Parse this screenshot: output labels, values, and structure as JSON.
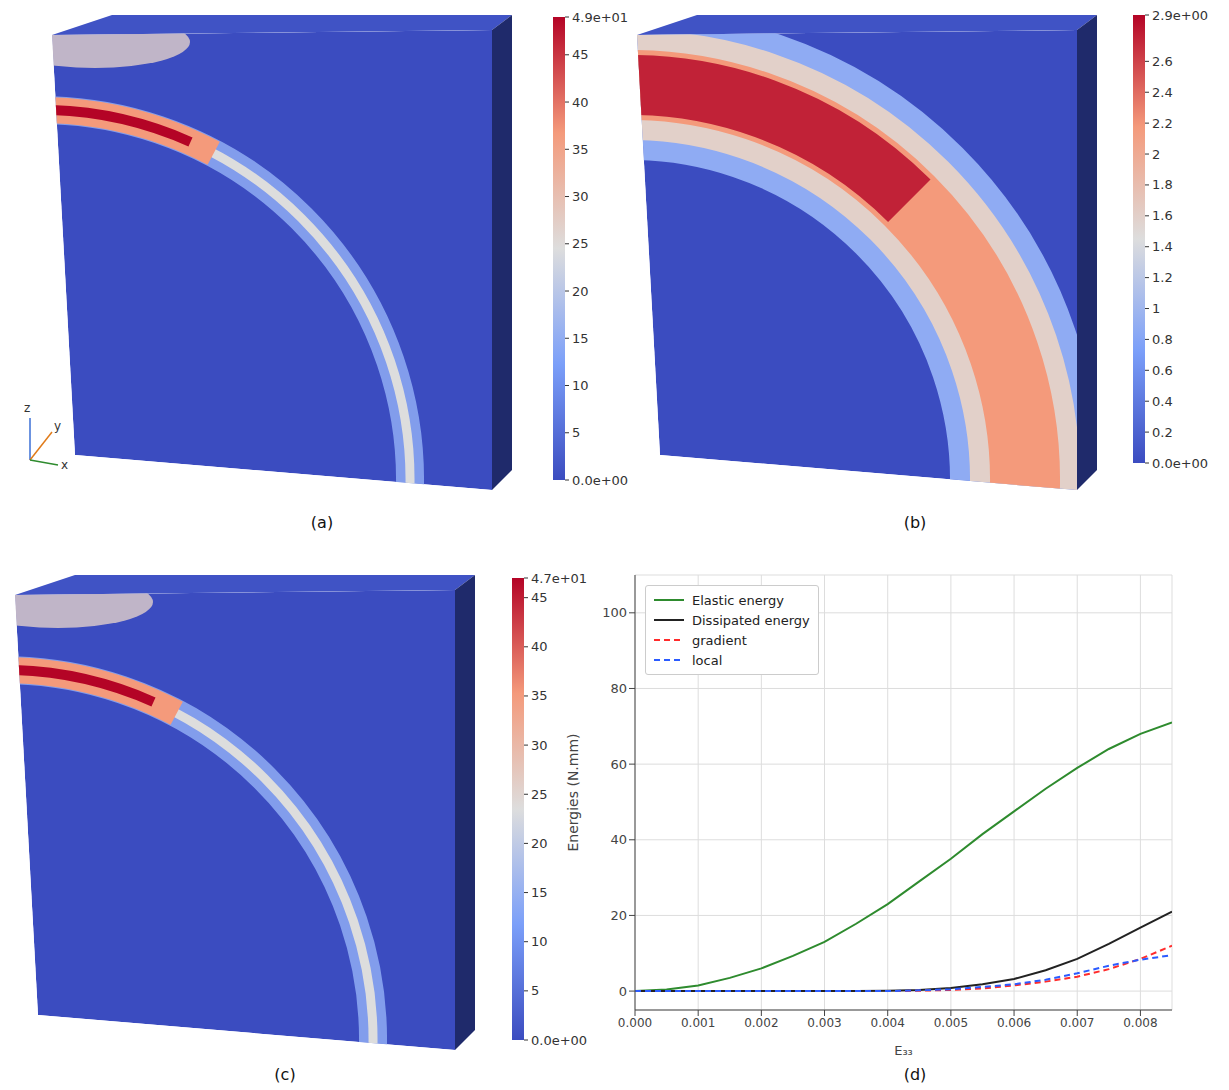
{
  "chart_data": [
    {
      "type": "field_rendering",
      "label": "(a)",
      "axes_triad": [
        "x",
        "y",
        "z"
      ],
      "colorbar": {
        "range": [
          0,
          49
        ],
        "ticks": [
          {
            "value": 0,
            "label": "0.0e+00"
          },
          5,
          10,
          15,
          20,
          25,
          30,
          35,
          40,
          45,
          {
            "value": 49,
            "label": "4.9e+01"
          }
        ]
      }
    },
    {
      "type": "field_rendering",
      "label": "(b)",
      "colorbar": {
        "range": [
          0,
          2.9
        ],
        "ticks": [
          {
            "value": 0,
            "label": "0.0e+00"
          },
          0.2,
          0.4,
          0.6,
          0.8,
          1,
          1.2,
          1.4,
          1.6,
          1.8,
          2,
          2.2,
          2.4,
          2.6,
          {
            "value": 2.9,
            "label": "2.9e+00"
          }
        ]
      }
    },
    {
      "type": "field_rendering",
      "label": "(c)",
      "colorbar": {
        "range": [
          0,
          47
        ],
        "ticks": [
          {
            "value": 0,
            "label": "0.0e+00"
          },
          5,
          10,
          15,
          20,
          25,
          30,
          35,
          40,
          45,
          {
            "value": 47,
            "label": "4.7e+01"
          }
        ]
      }
    },
    {
      "type": "line",
      "label": "(d)",
      "x_label": "E₃₃",
      "y_label": "Energies (N.mm)",
      "x": [
        0,
        0.0005,
        0.001,
        0.0015,
        0.002,
        0.0025,
        0.003,
        0.0035,
        0.004,
        0.0045,
        0.005,
        0.0055,
        0.006,
        0.0065,
        0.007,
        0.0075,
        0.008,
        0.0085
      ],
      "xlim": [
        0,
        0.0085
      ],
      "xticks": [
        {
          "value": 0,
          "label": "0.000"
        },
        {
          "value": 0.001,
          "label": "0.001"
        },
        {
          "value": 0.002,
          "label": "0.002"
        },
        {
          "value": 0.003,
          "label": "0.003"
        },
        {
          "value": 0.004,
          "label": "0.004"
        },
        {
          "value": 0.005,
          "label": "0.005"
        },
        {
          "value": 0.006,
          "label": "0.006"
        },
        {
          "value": 0.007,
          "label": "0.007"
        },
        {
          "value": 0.008,
          "label": "0.008"
        }
      ],
      "ylim": [
        -5,
        110
      ],
      "yticks": [
        0,
        20,
        40,
        60,
        80,
        100
      ],
      "grid": true,
      "legend": "upper left",
      "series": [
        {
          "name": "Elastic energy",
          "color": "#2e8b2e",
          "line_style": "solid",
          "values": [
            0,
            0.4,
            1.5,
            3.5,
            6,
            9.3,
            13,
            17.8,
            23,
            29,
            35,
            41.5,
            47.5,
            53.5,
            59,
            64,
            68,
            71
          ]
        },
        {
          "name": "Dissipated energy",
          "color": "#222222",
          "line_style": "solid",
          "values": [
            0,
            0,
            0,
            0,
            0,
            0,
            0,
            0.05,
            0.1,
            0.3,
            0.8,
            1.8,
            3.2,
            5.5,
            8.5,
            12.5,
            16.8,
            21
          ]
        },
        {
          "name": "gradient",
          "color": "#ff2b2b",
          "line_style": "dashed",
          "values": [
            0,
            0,
            0,
            0,
            0,
            0,
            0,
            0,
            0,
            0.1,
            0.3,
            0.7,
            1.5,
            2.5,
            3.8,
            5.8,
            8.5,
            12
          ]
        },
        {
          "name": "local",
          "color": "#2b5bff",
          "line_style": "dashed",
          "values": [
            0,
            0,
            0,
            0,
            0,
            0,
            0,
            0,
            0,
            0.2,
            0.5,
            1.1,
            1.8,
            3,
            4.7,
            6.7,
            8.3,
            9.5
          ]
        }
      ]
    }
  ]
}
